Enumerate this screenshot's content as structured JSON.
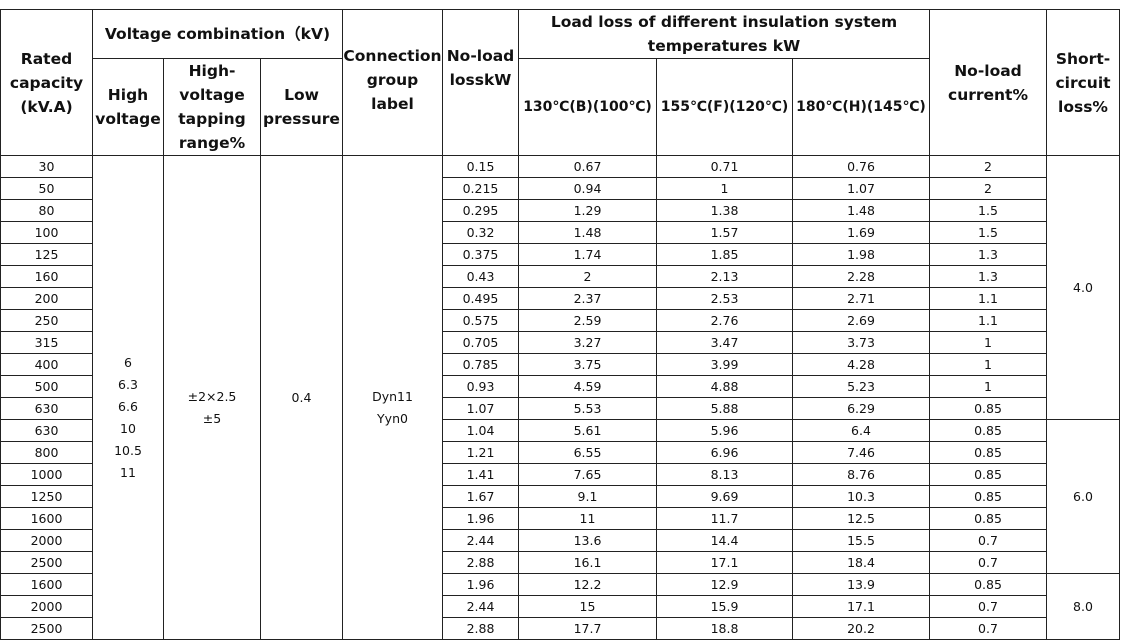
{
  "header": {
    "rated_capacity": "Rated capacity (kV.A)",
    "voltage_combination": "Voltage combination（kV)",
    "high_voltage": "High voltage",
    "tapping_range": "High-voltage tapping range%",
    "low_pressure": "Low pressure",
    "connection_group": "Connection group label",
    "no_load_loss": "No-load losskW",
    "load_loss": "Load loss of different insulation system temperatures kW",
    "temp_b": "130℃(B)(100℃)",
    "temp_f": "155℃(F)(120℃)",
    "temp_h": "180℃(H)(145℃)",
    "no_load_current": "No-load current%",
    "short_circuit_loss": "Short-circuit loss%"
  },
  "table": {
    "high_voltage": [
      "6",
      "6.3",
      "6.6",
      "10",
      "10.5",
      "11"
    ],
    "tapping_range": [
      "±2×2.5",
      "±5"
    ],
    "low_pressure": "0.4",
    "connection_group": [
      "Dyn11",
      "Yyn0"
    ],
    "short_circuit_loss": [
      "4.0",
      "6.0",
      "8.0"
    ],
    "rows": [
      [
        "30",
        "0.15",
        "0.67",
        "0.71",
        "0.76",
        "2"
      ],
      [
        "50",
        "0.215",
        "0.94",
        "1",
        "1.07",
        "2"
      ],
      [
        "80",
        "0.295",
        "1.29",
        "1.38",
        "1.48",
        "1.5"
      ],
      [
        "100",
        "0.32",
        "1.48",
        "1.57",
        "1.69",
        "1.5"
      ],
      [
        "125",
        "0.375",
        "1.74",
        "1.85",
        "1.98",
        "1.3"
      ],
      [
        "160",
        "0.43",
        "2",
        "2.13",
        "2.28",
        "1.3"
      ],
      [
        "200",
        "0.495",
        "2.37",
        "2.53",
        "2.71",
        "1.1"
      ],
      [
        "250",
        "0.575",
        "2.59",
        "2.76",
        "2.69",
        "1.1"
      ],
      [
        "315",
        "0.705",
        "3.27",
        "3.47",
        "3.73",
        "1"
      ],
      [
        "400",
        "0.785",
        "3.75",
        "3.99",
        "4.28",
        "1"
      ],
      [
        "500",
        "0.93",
        "4.59",
        "4.88",
        "5.23",
        "1"
      ],
      [
        "630",
        "1.07",
        "5.53",
        "5.88",
        "6.29",
        "0.85"
      ],
      [
        "630",
        "1.04",
        "5.61",
        "5.96",
        "6.4",
        "0.85"
      ],
      [
        "800",
        "1.21",
        "6.55",
        "6.96",
        "7.46",
        "0.85"
      ],
      [
        "1000",
        "1.41",
        "7.65",
        "8.13",
        "8.76",
        "0.85"
      ],
      [
        "1250",
        "1.67",
        "9.1",
        "9.69",
        "10.3",
        "0.85"
      ],
      [
        "1600",
        "1.96",
        "11",
        "11.7",
        "12.5",
        "0.85"
      ],
      [
        "2000",
        "2.44",
        "13.6",
        "14.4",
        "15.5",
        "0.7"
      ],
      [
        "2500",
        "2.88",
        "16.1",
        "17.1",
        "18.4",
        "0.7"
      ],
      [
        "1600",
        "1.96",
        "12.2",
        "12.9",
        "13.9",
        "0.85"
      ],
      [
        "2000",
        "2.44",
        "15",
        "15.9",
        "17.1",
        "0.7"
      ],
      [
        "2500",
        "2.88",
        "17.7",
        "18.8",
        "20.2",
        "0.7"
      ]
    ]
  }
}
